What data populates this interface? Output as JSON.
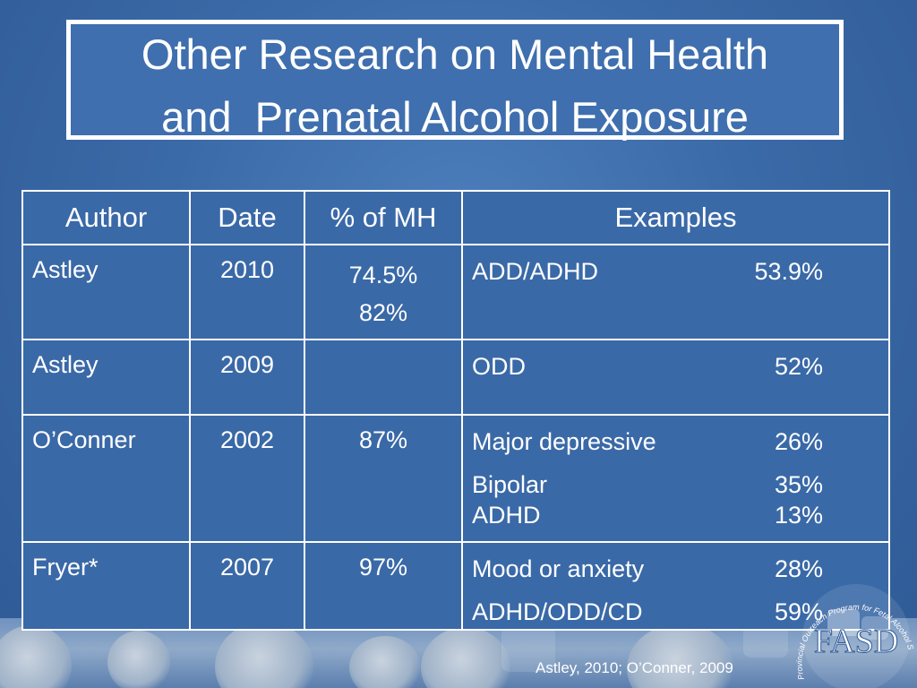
{
  "slide": {
    "title_line1": "Other Research on Mental Health",
    "title_line2": "and  Prenatal Alcohol Exposure"
  },
  "table": {
    "headers": [
      "Author",
      "Date",
      "% of MH",
      "Examples"
    ],
    "rows": [
      {
        "author": "Astley",
        "date": "2010",
        "pct": [
          "74.5%",
          "82%"
        ],
        "examples": [
          {
            "label": "ADD/ADHD",
            "value": "53.9%"
          }
        ]
      },
      {
        "author": "Astley",
        "date": "2009",
        "pct": [],
        "examples": [
          {
            "label": "ODD",
            "value": "52%"
          }
        ]
      },
      {
        "author": "O’Conner",
        "date": "2002",
        "pct": [
          "87%"
        ],
        "examples": [
          {
            "label": "Major depressive",
            "value": "26%"
          },
          {
            "label": "Bipolar",
            "value": "35%"
          },
          {
            "label": "ADHD",
            "value": "13%"
          }
        ]
      },
      {
        "author": "Fryer*",
        "date": "2007",
        "pct": [
          "97%"
        ],
        "examples": [
          {
            "label": "Mood or anxiety",
            "value": "28%"
          },
          {
            "label": "ADHD/ODD/CD",
            "value": "59%"
          }
        ]
      }
    ]
  },
  "footer": {
    "citation": "Astley, 2010; O’Conner, 2009",
    "logo_text": "FASD",
    "logo_arc_text": "Provincial Outreach Program for Fetal Alcohol Spectrum Disorder"
  },
  "colors": {
    "background": "#3b6aa8",
    "text": "#ffffff",
    "border": "#ffffff"
  }
}
